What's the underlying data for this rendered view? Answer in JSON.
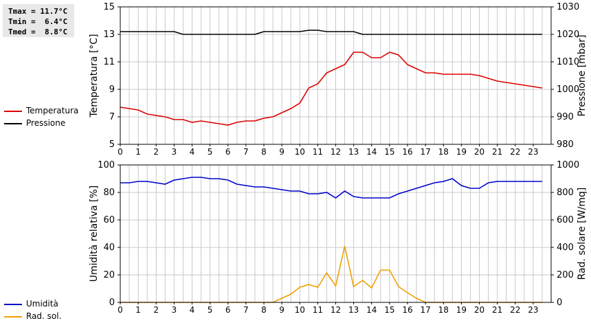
{
  "stats": {
    "tmax": "Tmax = 11.7°C",
    "tmin": "Tmin =  6.4°C",
    "tmed": "Tmed =  8.8°C"
  },
  "colors": {
    "temperature": "#dd0000",
    "pressure": "#000000",
    "humidity": "#0000cc",
    "radiation": "#f0a000",
    "grid": "#c8c8c8"
  },
  "legend_top": [
    {
      "label": "Temperatura",
      "color_key": "temperature"
    },
    {
      "label": "Pressione",
      "color_key": "pressure"
    }
  ],
  "legend_bottom": [
    {
      "label": "Umidità",
      "color_key": "humidity"
    },
    {
      "label": "Rad. sol.",
      "color_key": "radiation"
    }
  ],
  "chart_data": [
    {
      "type": "line",
      "ylabel": "Temperatura [°C]",
      "y2label": "Pressione [mbar]",
      "ylim": [
        5,
        15
      ],
      "yticks": [
        5,
        7,
        9,
        11,
        13,
        15
      ],
      "y2lim": [
        980,
        1030
      ],
      "y2ticks": [
        980,
        990,
        1000,
        1010,
        1020,
        1030
      ],
      "xlim": [
        0,
        24
      ],
      "xticks": [
        0,
        1,
        2,
        3,
        4,
        5,
        6,
        7,
        8,
        9,
        10,
        11,
        12,
        13,
        14,
        15,
        16,
        17,
        18,
        19,
        20,
        21,
        22,
        23
      ],
      "grid": true,
      "series": [
        {
          "name": "Temperatura",
          "axis": "left",
          "color_key": "temperature",
          "x": [
            0,
            0.5,
            1,
            1.5,
            2,
            2.5,
            3,
            3.5,
            4,
            4.5,
            5,
            5.5,
            6,
            6.5,
            7,
            7.5,
            8,
            8.5,
            9,
            9.5,
            10,
            10.5,
            11,
            11.5,
            12,
            12.5,
            13,
            13.5,
            14,
            14.5,
            15,
            15.5,
            16,
            16.5,
            17,
            17.5,
            18,
            18.5,
            19,
            19.5,
            20,
            20.5,
            21,
            21.5,
            22,
            22.5,
            23,
            23.5
          ],
          "y": [
            7.7,
            7.6,
            7.5,
            7.2,
            7.1,
            7.0,
            6.8,
            6.8,
            6.6,
            6.7,
            6.6,
            6.5,
            6.4,
            6.6,
            6.7,
            6.7,
            6.9,
            7.0,
            7.3,
            7.6,
            8.0,
            9.1,
            9.4,
            10.2,
            10.5,
            10.8,
            11.7,
            11.7,
            11.3,
            11.3,
            11.7,
            11.5,
            10.8,
            10.5,
            10.2,
            10.2,
            10.1,
            10.1,
            10.1,
            10.1,
            10.0,
            9.8,
            9.6,
            9.5,
            9.4,
            9.3,
            9.2,
            9.1
          ]
        },
        {
          "name": "Pressione",
          "axis": "right",
          "color_key": "pressure",
          "x": [
            0,
            0.5,
            1,
            1.5,
            2,
            2.5,
            3,
            3.5,
            4,
            4.5,
            5,
            5.5,
            6,
            6.5,
            7,
            7.5,
            8,
            8.5,
            9,
            9.5,
            10,
            10.5,
            11,
            11.5,
            12,
            12.5,
            13,
            13.5,
            14,
            14.5,
            15,
            15.5,
            16,
            16.5,
            17,
            17.5,
            18,
            18.5,
            19,
            19.5,
            20,
            20.5,
            21,
            21.5,
            22,
            22.5,
            23,
            23.5
          ],
          "y": [
            1021,
            1021,
            1021,
            1021,
            1021,
            1021,
            1021,
            1020,
            1020,
            1020,
            1020,
            1020,
            1020,
            1020,
            1020,
            1020,
            1021,
            1021,
            1021,
            1021,
            1021,
            1021.5,
            1021.5,
            1021,
            1021,
            1021,
            1021,
            1020,
            1020,
            1020,
            1020,
            1020,
            1020,
            1020,
            1020,
            1020,
            1020,
            1020,
            1020,
            1020,
            1020,
            1020,
            1020,
            1020,
            1020,
            1020,
            1020,
            1020
          ]
        }
      ]
    },
    {
      "type": "line",
      "ylabel": "Umidità relativa [%]",
      "y2label": "Rad. solare [W/mq]",
      "ylim": [
        0,
        100
      ],
      "yticks": [
        0,
        20,
        40,
        60,
        80,
        100
      ],
      "y2lim": [
        0,
        1000
      ],
      "y2ticks": [
        0,
        200,
        400,
        600,
        800,
        1000
      ],
      "xlim": [
        0,
        24
      ],
      "xticks": [
        0,
        1,
        2,
        3,
        4,
        5,
        6,
        7,
        8,
        9,
        10,
        11,
        12,
        13,
        14,
        15,
        16,
        17,
        18,
        19,
        20,
        21,
        22,
        23
      ],
      "grid": true,
      "series": [
        {
          "name": "Umidità",
          "axis": "left",
          "color_key": "humidity",
          "x": [
            0,
            0.5,
            1,
            1.5,
            2,
            2.5,
            3,
            3.5,
            4,
            4.5,
            5,
            5.5,
            6,
            6.5,
            7,
            7.5,
            8,
            8.5,
            9,
            9.5,
            10,
            10.5,
            11,
            11.5,
            12,
            12.5,
            13,
            13.5,
            14,
            14.5,
            15,
            15.5,
            16,
            16.5,
            17,
            17.5,
            18,
            18.5,
            19,
            19.5,
            20,
            20.5,
            21,
            21.5,
            22,
            22.5,
            23,
            23.5
          ],
          "y": [
            87,
            87,
            88,
            88,
            87,
            86,
            89,
            90,
            91,
            91,
            90,
            90,
            89,
            86,
            85,
            84,
            84,
            83,
            82,
            81,
            81,
            79,
            79,
            80,
            76,
            81,
            77,
            76,
            76,
            76,
            76,
            79,
            81,
            83,
            85,
            87,
            88,
            90,
            85,
            83,
            83,
            87,
            88,
            88,
            88,
            88,
            88,
            88
          ]
        },
        {
          "name": "Rad. sol.",
          "axis": "right",
          "color_key": "radiation",
          "x": [
            0,
            0.5,
            1,
            1.5,
            2,
            2.5,
            3,
            3.5,
            4,
            4.5,
            5,
            5.5,
            6,
            6.5,
            7,
            7.5,
            8,
            8.5,
            9,
            9.5,
            10,
            10.5,
            11,
            11.5,
            12,
            12.5,
            13,
            13.5,
            14,
            14.5,
            15,
            15.5,
            16,
            16.5,
            17,
            17.5,
            18,
            18.5,
            19,
            19.5,
            20,
            20.5,
            21,
            21.5,
            22,
            22.5,
            23,
            23.5
          ],
          "y": [
            0,
            0,
            0,
            0,
            0,
            0,
            0,
            0,
            0,
            0,
            0,
            0,
            0,
            0,
            0,
            0,
            0,
            0,
            30,
            60,
            110,
            130,
            110,
            215,
            120,
            410,
            115,
            160,
            105,
            235,
            235,
            115,
            70,
            30,
            0,
            0,
            0,
            0,
            0,
            0,
            0,
            0,
            0,
            0,
            0,
            0,
            0,
            0
          ]
        }
      ]
    }
  ]
}
